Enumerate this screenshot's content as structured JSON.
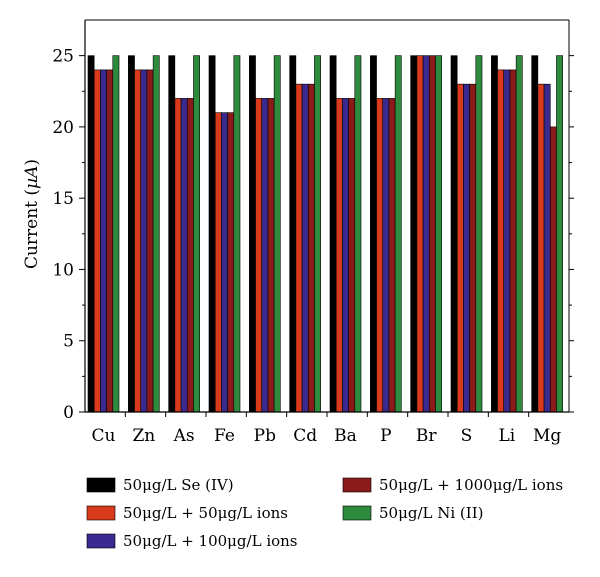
{
  "chart_data": {
    "type": "bar",
    "title": "",
    "xlabel": "",
    "ylabel": "Current (µA)",
    "ylabel_prefix": "Current (",
    "ylabel_unit": "µA",
    "ylabel_suffix": ")",
    "ylim": [
      0,
      27.5
    ],
    "yticks": [
      0,
      5,
      10,
      15,
      20,
      25
    ],
    "grid": false,
    "legend_position": "bottom",
    "categories": [
      "Cu",
      "Zn",
      "As",
      "Fe",
      "Pb",
      "Cd",
      "Ba",
      "P",
      "Br",
      "S",
      "Li",
      "Mg"
    ],
    "series": [
      {
        "name": "50μg/L Se (IV)",
        "color": "#000000",
        "values": [
          25,
          25,
          25,
          25,
          25,
          25,
          25,
          25,
          25,
          25,
          25,
          25
        ]
      },
      {
        "name": "50μg/L + 50μg/L ions",
        "color": "#d93a1b",
        "values": [
          24,
          24,
          22,
          21,
          22,
          23,
          22,
          22,
          25,
          23,
          24,
          23
        ]
      },
      {
        "name": "50μg/L + 100μg/L ions",
        "color": "#3a2a8f",
        "values": [
          24,
          24,
          22,
          21,
          22,
          23,
          22,
          22,
          25,
          23,
          24,
          23
        ]
      },
      {
        "name": "50μg/L + 1000μg/L ions",
        "color": "#8b1a1a",
        "values": [
          24,
          24,
          22,
          21,
          22,
          23,
          22,
          22,
          25,
          23,
          24,
          20
        ]
      },
      {
        "name": "50μg/L Ni (II)",
        "color": "#2e8b3e",
        "values": [
          25,
          25,
          25,
          25,
          25,
          25,
          25,
          25,
          25,
          25,
          25,
          25
        ]
      }
    ]
  }
}
